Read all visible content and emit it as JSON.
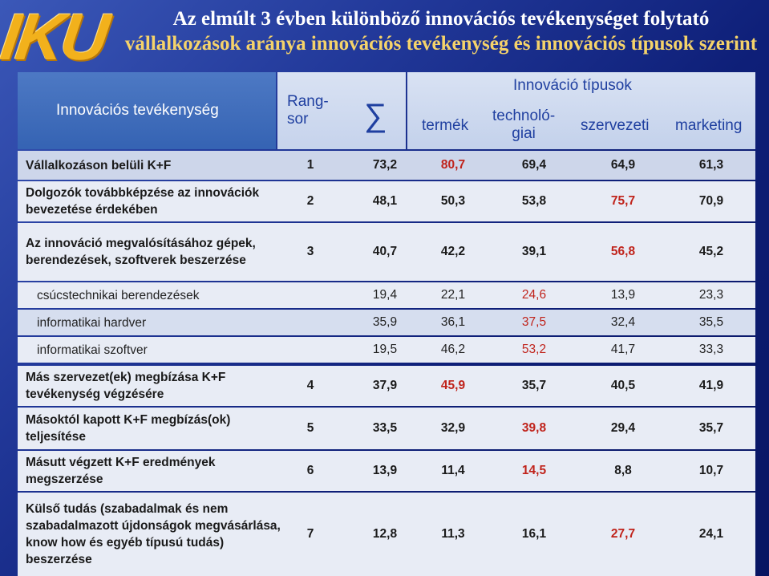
{
  "title": {
    "line1": "Az elmúlt 3 évben különböző innovációs tevékenységet folytató",
    "line2": "vállalkozások aránya innovációs tevékenység és innovációs típusok szerint"
  },
  "logo_text": "IKU",
  "header": {
    "col_activity": "Innovációs tevékenység",
    "col_rank": "Rang-\nsor",
    "col_sum": "∑",
    "group_types": "Innováció típusok",
    "col_termek": "termék",
    "col_tech": "technoló-\ngiai",
    "col_szerv": "szervezeti",
    "col_mark": "marketing"
  },
  "rows": [
    {
      "label": "Vállalkozáson belüli K+F",
      "rank": "1",
      "sum": "73,2",
      "termek": "80,7",
      "tech": "69,4",
      "szerv": "64,9",
      "mark": "61,3"
    },
    {
      "label": "Dolgozók továbbképzése az innovációk bevezetése érdekében",
      "rank": "2",
      "sum": "48,1",
      "termek": "50,3",
      "tech": "53,8",
      "szerv": "75,7",
      "mark": "70,9"
    },
    {
      "label": "Az innováció megvalósításához gépek, berendezések, szoftverek beszerzése",
      "rank": "3",
      "sum": "40,7",
      "termek": "42,2",
      "tech": "39,1",
      "szerv": "56,8",
      "mark": "45,2"
    },
    {
      "label": "csúcstechnikai berendezések",
      "rank": "",
      "sum": "19,4",
      "termek": "22,1",
      "tech": "24,6",
      "szerv": "13,9",
      "mark": "23,3"
    },
    {
      "label": "informatikai hardver",
      "rank": "",
      "sum": "35,9",
      "termek": "36,1",
      "tech": "37,5",
      "szerv": "32,4",
      "mark": "35,5"
    },
    {
      "label": "informatikai szoftver",
      "rank": "",
      "sum": "19,5",
      "termek": "46,2",
      "tech": "53,2",
      "szerv": "41,7",
      "mark": "33,3"
    },
    {
      "label": "Más szervezet(ek) megbízása K+F tevékenység végzésére",
      "rank": "4",
      "sum": "37,9",
      "termek": "45,9",
      "tech": "35,7",
      "szerv": "40,5",
      "mark": "41,9"
    },
    {
      "label": "Másoktól kapott K+F megbízás(ok) teljesítése",
      "rank": "5",
      "sum": "33,5",
      "termek": "32,9",
      "tech": "39,8",
      "szerv": "29,4",
      "mark": "35,7"
    },
    {
      "label": "Másutt végzett K+F eredmények megszerzése",
      "rank": "6",
      "sum": "13,9",
      "termek": "11,4",
      "tech": "14,5",
      "szerv": "8,8",
      "mark": "10,7"
    },
    {
      "label": "Külső tudás (szabadalmak és nem szabadalmazott újdonságok megvásárlása, know how és egyéb típusú tudás) beszerzése",
      "rank": "7",
      "sum": "12,8",
      "termek": "11,3",
      "tech": "16,1",
      "szerv": "27,7",
      "mark": "24,1"
    }
  ],
  "colors": {
    "highlight": "#c0231b",
    "header_blue": "#3563b3",
    "title_yellow": "#f5d36a"
  }
}
